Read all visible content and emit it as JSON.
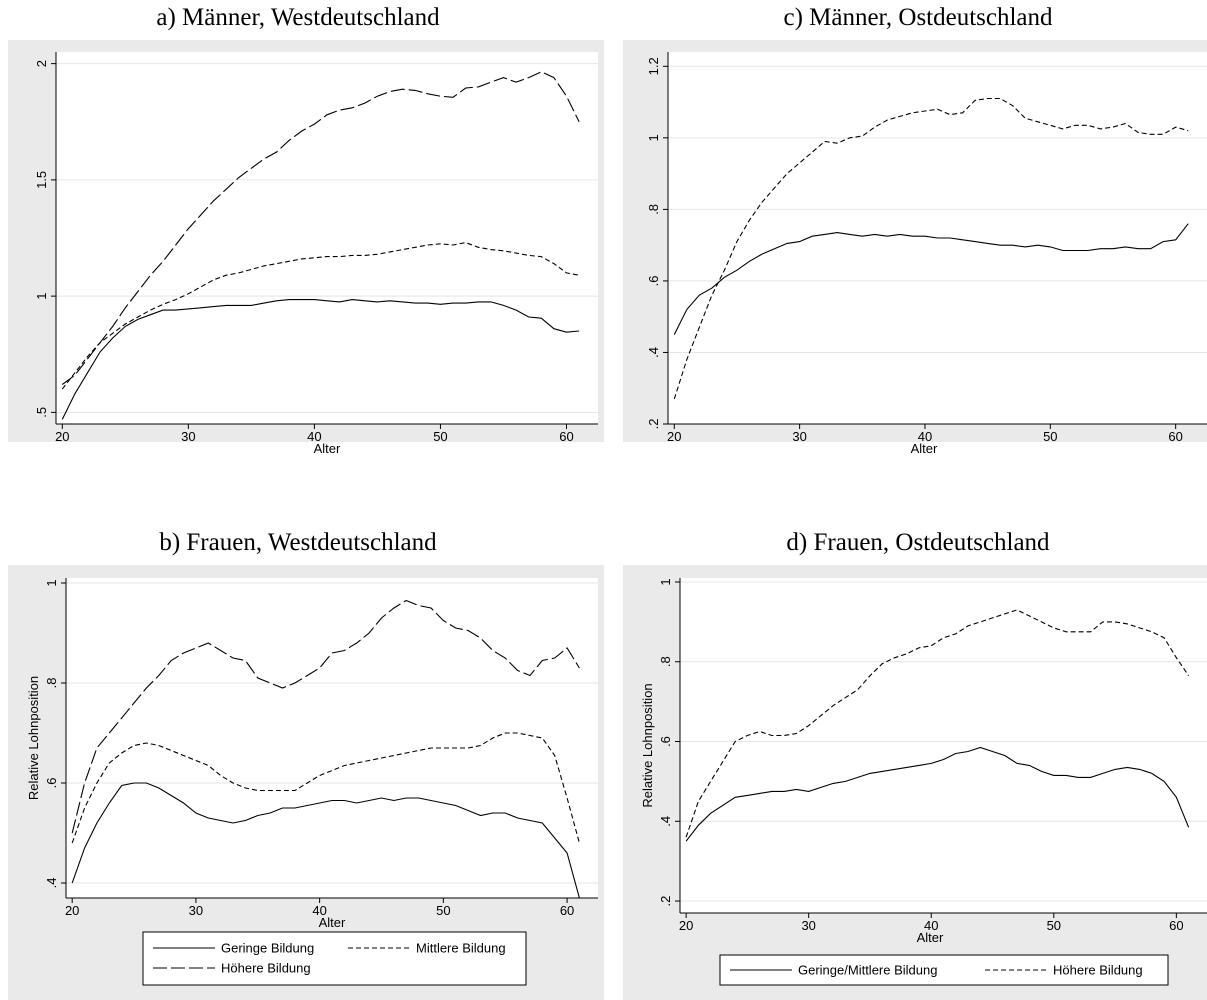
{
  "chart_data": [
    {
      "id": "a",
      "type": "line",
      "title": "a) Männer, Westdeutschland",
      "xlabel": "Alter",
      "ylabel": "",
      "xlim": [
        19.5,
        62.5
      ],
      "ylim": [
        0.45,
        2.05
      ],
      "xticks": [
        20,
        30,
        40,
        50,
        60
      ],
      "xtick_labels": [
        "20",
        "30",
        "40",
        "50",
        "60"
      ],
      "yticks": [
        0.5,
        1,
        1.5,
        2
      ],
      "ytick_labels": [
        ".5",
        "1",
        "1.5",
        "2"
      ],
      "grid": true,
      "x": [
        20,
        21,
        22,
        23,
        24,
        25,
        26,
        27,
        28,
        29,
        30,
        31,
        32,
        33,
        34,
        35,
        36,
        37,
        38,
        39,
        40,
        41,
        42,
        43,
        44,
        45,
        46,
        47,
        48,
        49,
        50,
        51,
        52,
        53,
        54,
        55,
        56,
        57,
        58,
        59,
        60,
        61
      ],
      "series": [
        {
          "name": "Geringe Bildung",
          "dash": "solid",
          "values": [
            0.47,
            0.58,
            0.67,
            0.76,
            0.82,
            0.87,
            0.9,
            0.92,
            0.94,
            0.94,
            0.945,
            0.95,
            0.955,
            0.96,
            0.96,
            0.96,
            0.97,
            0.98,
            0.985,
            0.985,
            0.985,
            0.98,
            0.975,
            0.985,
            0.98,
            0.975,
            0.98,
            0.975,
            0.97,
            0.97,
            0.965,
            0.97,
            0.97,
            0.975,
            0.975,
            0.96,
            0.94,
            0.91,
            0.905,
            0.86,
            0.845,
            0.85
          ]
        },
        {
          "name": "Mittlere Bildung",
          "dash": "short",
          "values": [
            0.6,
            0.67,
            0.74,
            0.8,
            0.84,
            0.88,
            0.91,
            0.94,
            0.965,
            0.985,
            1.01,
            1.04,
            1.07,
            1.09,
            1.1,
            1.115,
            1.13,
            1.14,
            1.15,
            1.16,
            1.165,
            1.17,
            1.17,
            1.175,
            1.175,
            1.18,
            1.19,
            1.2,
            1.21,
            1.22,
            1.225,
            1.22,
            1.23,
            1.21,
            1.2,
            1.195,
            1.185,
            1.175,
            1.17,
            1.14,
            1.1,
            1.09
          ]
        },
        {
          "name": "Höhere Bildung",
          "dash": "long",
          "values": [
            0.62,
            0.66,
            0.73,
            0.8,
            0.87,
            0.95,
            1.02,
            1.09,
            1.15,
            1.22,
            1.29,
            1.35,
            1.41,
            1.46,
            1.51,
            1.55,
            1.59,
            1.62,
            1.67,
            1.71,
            1.74,
            1.78,
            1.8,
            1.81,
            1.83,
            1.86,
            1.88,
            1.89,
            1.885,
            1.87,
            1.86,
            1.855,
            1.895,
            1.9,
            1.92,
            1.94,
            1.92,
            1.94,
            1.965,
            1.94,
            1.86,
            1.75
          ]
        }
      ]
    },
    {
      "id": "c",
      "type": "line",
      "title": "c) Männer, Ostdeutschland",
      "xlabel": "Alter",
      "ylabel": "",
      "xlim": [
        19.5,
        62.5
      ],
      "ylim": [
        0.2,
        1.24
      ],
      "xticks": [
        20,
        30,
        40,
        50,
        60
      ],
      "xtick_labels": [
        "20",
        "30",
        "40",
        "50",
        "60"
      ],
      "yticks": [
        0.2,
        0.4,
        0.6,
        0.8,
        1,
        1.2
      ],
      "ytick_labels": [
        ".2",
        ".4",
        ".6",
        ".8",
        "1",
        "1.2"
      ],
      "grid": true,
      "x": [
        20,
        21,
        22,
        23,
        24,
        25,
        26,
        27,
        28,
        29,
        30,
        31,
        32,
        33,
        34,
        35,
        36,
        37,
        38,
        39,
        40,
        41,
        42,
        43,
        44,
        45,
        46,
        47,
        48,
        49,
        50,
        51,
        52,
        53,
        54,
        55,
        56,
        57,
        58,
        59,
        60,
        61
      ],
      "series": [
        {
          "name": "Geringe/Mittlere Bildung",
          "dash": "solid",
          "values": [
            0.45,
            0.52,
            0.56,
            0.58,
            0.61,
            0.63,
            0.655,
            0.675,
            0.69,
            0.705,
            0.71,
            0.725,
            0.73,
            0.735,
            0.73,
            0.725,
            0.73,
            0.725,
            0.73,
            0.725,
            0.725,
            0.72,
            0.72,
            0.715,
            0.71,
            0.705,
            0.7,
            0.7,
            0.695,
            0.7,
            0.695,
            0.685,
            0.685,
            0.685,
            0.69,
            0.69,
            0.695,
            0.69,
            0.69,
            0.71,
            0.715,
            0.76
          ]
        },
        {
          "name": "Höhere Bildung",
          "dash": "short",
          "values": [
            0.27,
            0.38,
            0.47,
            0.56,
            0.63,
            0.71,
            0.77,
            0.82,
            0.86,
            0.9,
            0.93,
            0.96,
            0.99,
            0.985,
            1.0,
            1.005,
            1.03,
            1.05,
            1.06,
            1.07,
            1.075,
            1.08,
            1.065,
            1.07,
            1.105,
            1.11,
            1.11,
            1.09,
            1.055,
            1.045,
            1.035,
            1.025,
            1.035,
            1.035,
            1.025,
            1.03,
            1.04,
            1.015,
            1.01,
            1.01,
            1.03,
            1.02
          ]
        }
      ]
    },
    {
      "id": "b",
      "type": "line",
      "title": "b) Frauen, Westdeutschland",
      "xlabel": "Alter",
      "ylabel": "Relative Lohnposition",
      "xlim": [
        19.5,
        62.5
      ],
      "ylim": [
        0.37,
        1.01
      ],
      "xticks": [
        20,
        30,
        40,
        50,
        60
      ],
      "xtick_labels": [
        "20",
        "30",
        "40",
        "50",
        "60"
      ],
      "yticks": [
        0.4,
        0.6,
        0.8,
        1
      ],
      "ytick_labels": [
        ".4",
        ".6",
        ".8",
        "1"
      ],
      "grid": true,
      "x": [
        20,
        21,
        22,
        23,
        24,
        25,
        26,
        27,
        28,
        29,
        30,
        31,
        32,
        33,
        34,
        35,
        36,
        37,
        38,
        39,
        40,
        41,
        42,
        43,
        44,
        45,
        46,
        47,
        48,
        49,
        50,
        51,
        52,
        53,
        54,
        55,
        56,
        57,
        58,
        59,
        60,
        61
      ],
      "series": [
        {
          "name": "Geringe Bildung",
          "dash": "solid",
          "values": [
            0.4,
            0.47,
            0.52,
            0.56,
            0.595,
            0.6,
            0.6,
            0.59,
            0.575,
            0.56,
            0.54,
            0.53,
            0.525,
            0.52,
            0.525,
            0.535,
            0.54,
            0.55,
            0.55,
            0.555,
            0.56,
            0.565,
            0.565,
            0.56,
            0.565,
            0.57,
            0.565,
            0.57,
            0.57,
            0.565,
            0.56,
            0.555,
            0.545,
            0.535,
            0.54,
            0.54,
            0.53,
            0.525,
            0.52,
            0.49,
            0.46,
            0.37
          ]
        },
        {
          "name": "Mittlere Bildung",
          "dash": "short",
          "values": [
            0.48,
            0.55,
            0.6,
            0.64,
            0.66,
            0.675,
            0.68,
            0.675,
            0.665,
            0.655,
            0.645,
            0.635,
            0.615,
            0.6,
            0.59,
            0.585,
            0.585,
            0.585,
            0.585,
            0.6,
            0.615,
            0.625,
            0.635,
            0.64,
            0.645,
            0.65,
            0.655,
            0.66,
            0.665,
            0.67,
            0.67,
            0.67,
            0.67,
            0.675,
            0.69,
            0.7,
            0.7,
            0.695,
            0.69,
            0.655,
            0.57,
            0.48
          ]
        },
        {
          "name": "Höhere Bildung",
          "dash": "long",
          "values": [
            0.5,
            0.6,
            0.67,
            0.7,
            0.73,
            0.76,
            0.79,
            0.815,
            0.845,
            0.86,
            0.87,
            0.88,
            0.865,
            0.85,
            0.845,
            0.81,
            0.8,
            0.79,
            0.8,
            0.815,
            0.83,
            0.86,
            0.865,
            0.88,
            0.9,
            0.93,
            0.95,
            0.965,
            0.955,
            0.95,
            0.925,
            0.91,
            0.905,
            0.89,
            0.865,
            0.85,
            0.825,
            0.815,
            0.845,
            0.85,
            0.87,
            0.83
          ]
        }
      ],
      "legend": {
        "position": "bottom",
        "entries": [
          {
            "label": "Geringe Bildung",
            "dash": "solid"
          },
          {
            "label": "Mittlere Bildung",
            "dash": "short"
          },
          {
            "label": "Höhere Bildung",
            "dash": "long"
          }
        ]
      }
    },
    {
      "id": "d",
      "type": "line",
      "title": "d) Frauen, Ostdeutschland",
      "xlabel": "Alter",
      "ylabel": "Relative Lohnposition",
      "xlim": [
        19.5,
        62.5
      ],
      "ylim": [
        0.17,
        1.01
      ],
      "xticks": [
        20,
        30,
        40,
        50,
        60
      ],
      "xtick_labels": [
        "20",
        "30",
        "40",
        "50",
        "60"
      ],
      "yticks": [
        0.2,
        0.4,
        0.6,
        0.8,
        1
      ],
      "ytick_labels": [
        ".2",
        ".4",
        ".6",
        ".8",
        "1"
      ],
      "grid": true,
      "x": [
        20,
        21,
        22,
        23,
        24,
        25,
        26,
        27,
        28,
        29,
        30,
        31,
        32,
        33,
        34,
        35,
        36,
        37,
        38,
        39,
        40,
        41,
        42,
        43,
        44,
        45,
        46,
        47,
        48,
        49,
        50,
        51,
        52,
        53,
        54,
        55,
        56,
        57,
        58,
        59,
        60,
        61
      ],
      "series": [
        {
          "name": "Geringe/Mittlere Bildung",
          "dash": "solid",
          "values": [
            0.35,
            0.39,
            0.42,
            0.44,
            0.46,
            0.465,
            0.47,
            0.475,
            0.475,
            0.48,
            0.475,
            0.485,
            0.495,
            0.5,
            0.51,
            0.52,
            0.525,
            0.53,
            0.535,
            0.54,
            0.545,
            0.555,
            0.57,
            0.575,
            0.585,
            0.575,
            0.565,
            0.545,
            0.54,
            0.525,
            0.515,
            0.515,
            0.51,
            0.51,
            0.52,
            0.53,
            0.535,
            0.53,
            0.52,
            0.5,
            0.46,
            0.385
          ]
        },
        {
          "name": "Höhere Bildung",
          "dash": "short",
          "values": [
            0.36,
            0.45,
            0.5,
            0.55,
            0.6,
            0.615,
            0.625,
            0.615,
            0.615,
            0.62,
            0.64,
            0.665,
            0.69,
            0.71,
            0.73,
            0.765,
            0.795,
            0.81,
            0.82,
            0.835,
            0.84,
            0.86,
            0.87,
            0.89,
            0.9,
            0.91,
            0.92,
            0.93,
            0.915,
            0.9,
            0.885,
            0.875,
            0.875,
            0.875,
            0.9,
            0.9,
            0.895,
            0.885,
            0.875,
            0.86,
            0.81,
            0.765
          ]
        }
      ],
      "legend": {
        "position": "bottom",
        "entries": [
          {
            "label": "Geringe/Mittlere Bildung",
            "dash": "solid"
          },
          {
            "label": "Höhere Bildung",
            "dash": "short"
          }
        ]
      }
    }
  ]
}
